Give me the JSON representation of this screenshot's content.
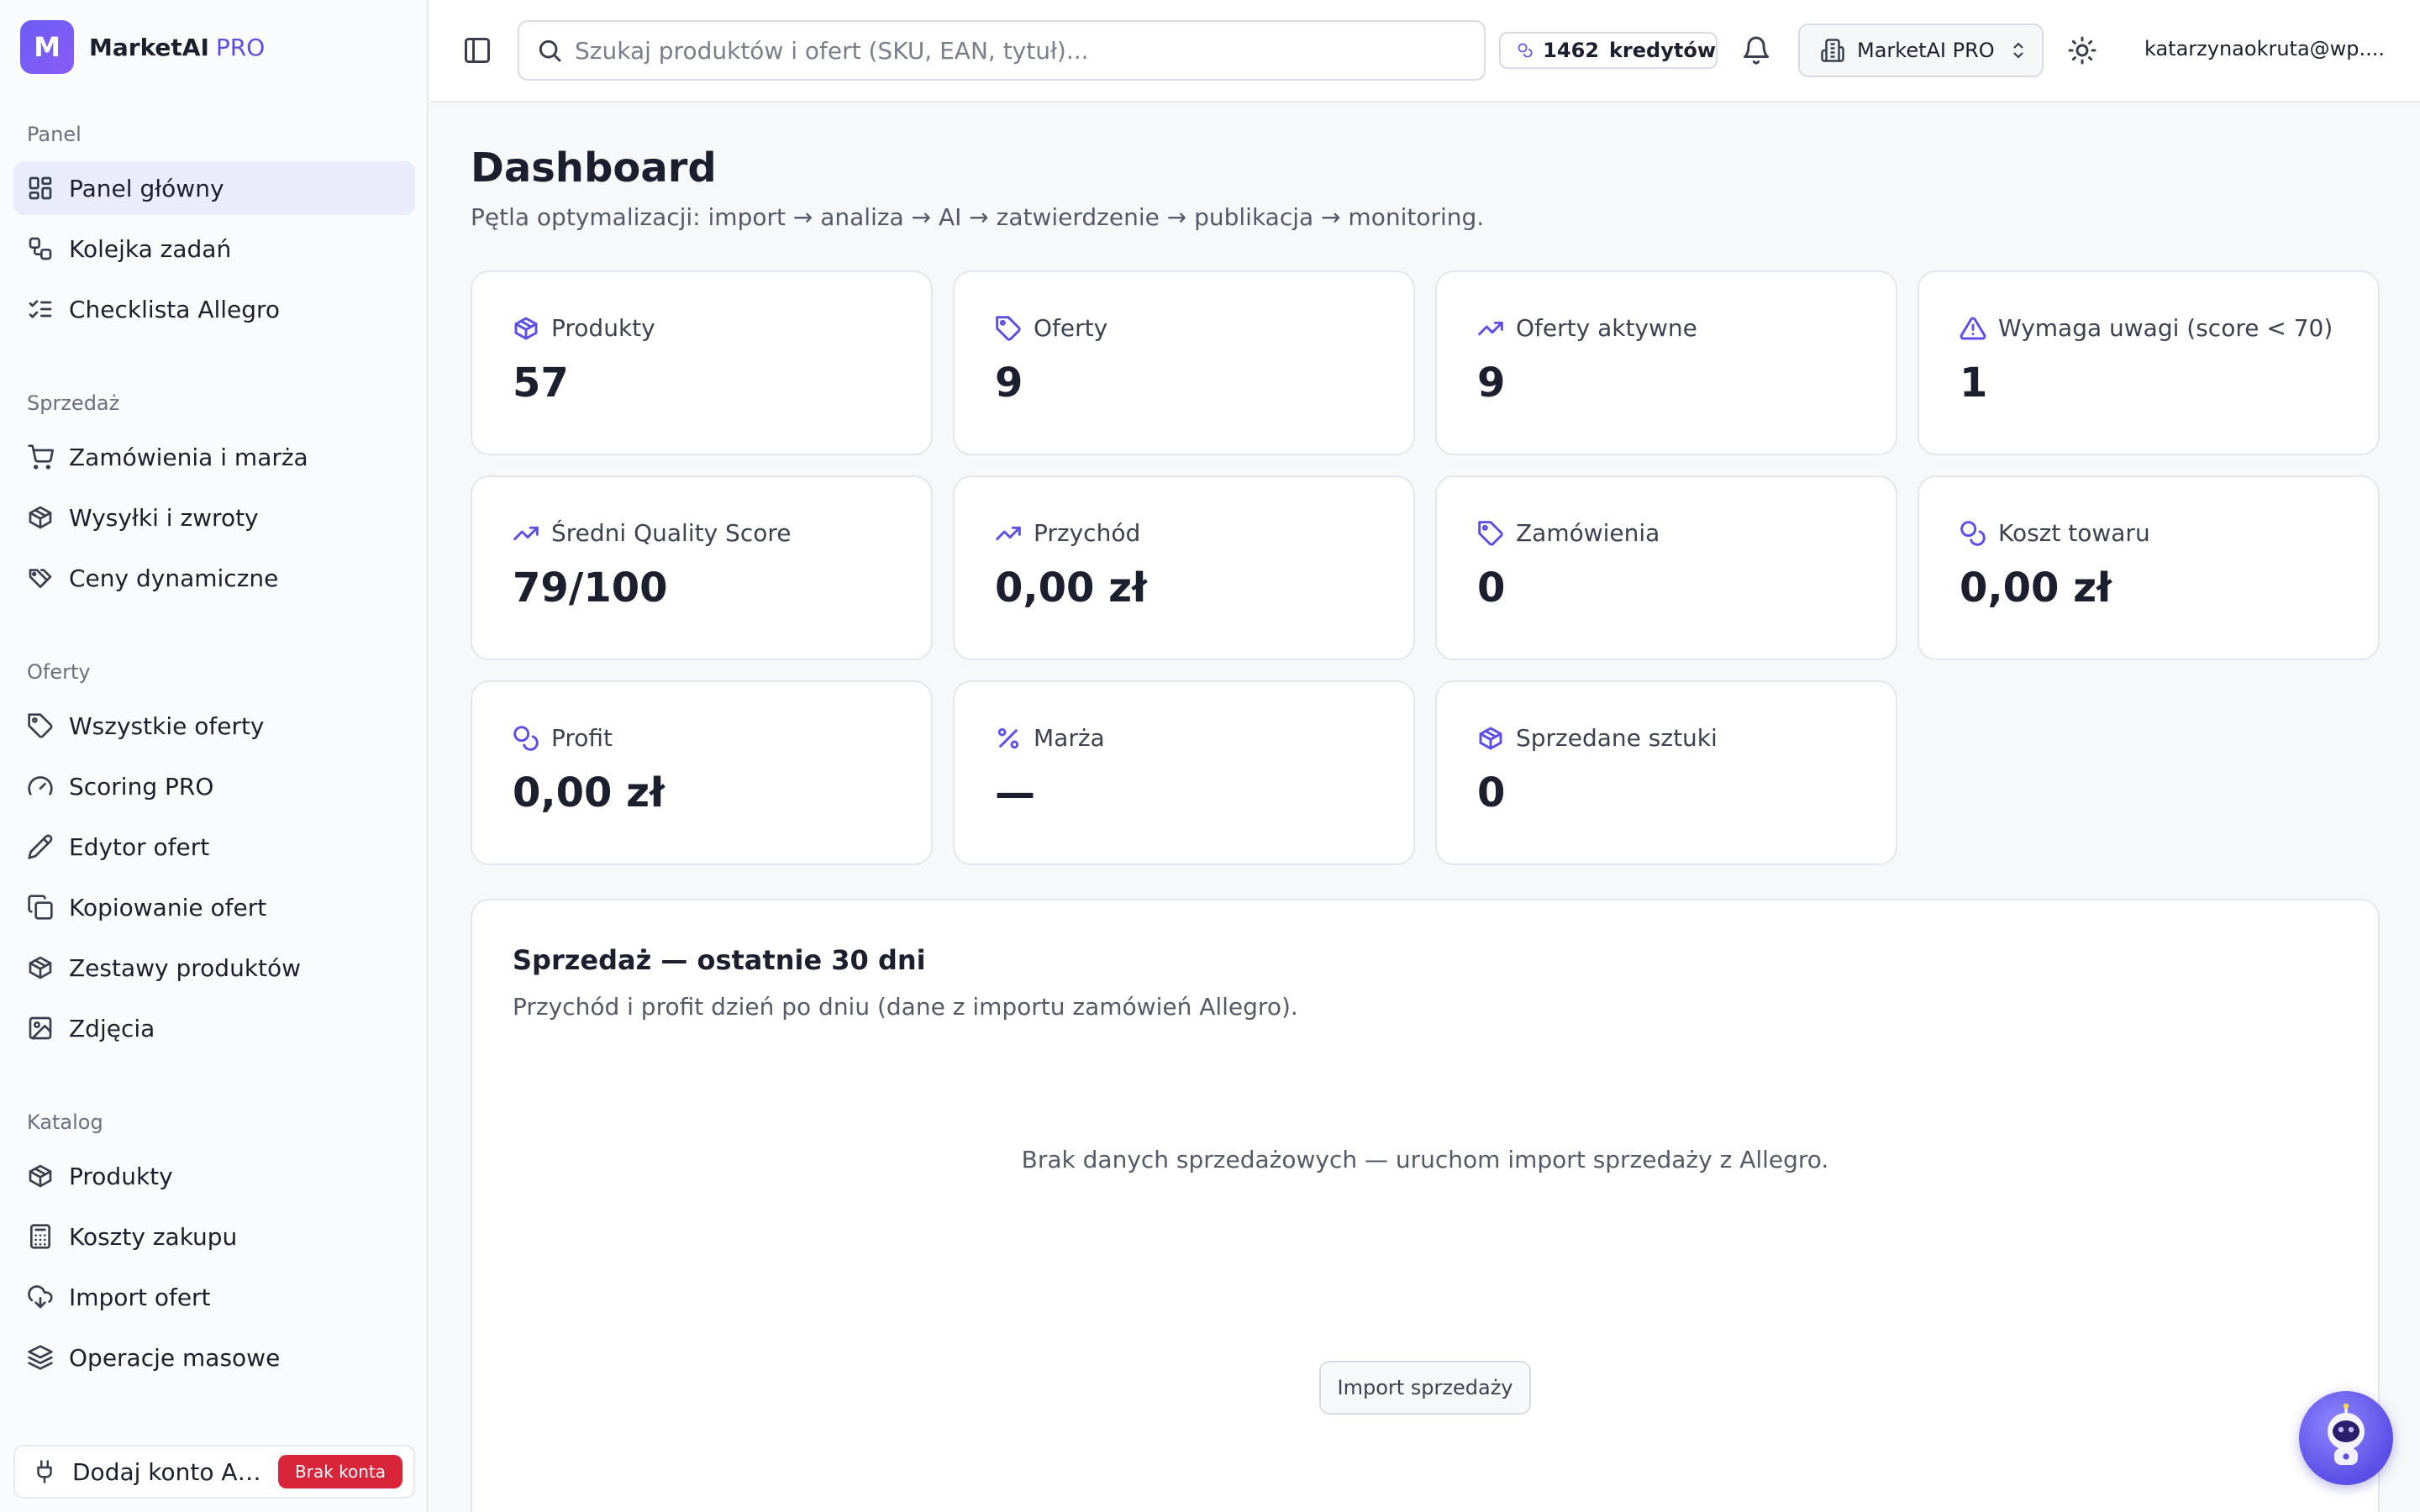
{
  "brand": {
    "logo_letter": "M",
    "name": "MarketAI",
    "tier": "PRO"
  },
  "sidebar": {
    "sections": [
      {
        "label": "Panel",
        "items": [
          "Panel główny",
          "Kolejka zadań",
          "Checklista Allegro"
        ]
      },
      {
        "label": "Sprzedaż",
        "items": [
          "Zamówienia i marża",
          "Wysyłki i zwroty",
          "Ceny dynamiczne"
        ]
      },
      {
        "label": "Oferty",
        "items": [
          "Wszystkie oferty",
          "Scoring PRO",
          "Edytor ofert",
          "Kopiowanie ofert",
          "Zestawy produktów",
          "Zdjęcia"
        ]
      },
      {
        "label": "Katalog",
        "items": [
          "Produkty",
          "Koszty zakupu",
          "Import ofert",
          "Operacje masowe"
        ]
      }
    ],
    "active_item": "Panel główny",
    "connect": {
      "label": "Dodaj konto Allegro",
      "badge": "Brak konta"
    }
  },
  "topbar": {
    "search_placeholder": "Szukaj produktów i ofert (SKU, EAN, tytuł)...",
    "credits_count": "1462",
    "credits_unit": "kredytów",
    "workspace": "MarketAI PRO",
    "user_email": "katarzynaokruta@wp...."
  },
  "page": {
    "title": "Dashboard",
    "subtitle": "Pętla optymalizacji: import → analiza → AI → zatwierdzenie → publikacja → monitoring."
  },
  "stats": [
    {
      "label": "Produkty",
      "value": "57",
      "icon": "package-icon"
    },
    {
      "label": "Oferty",
      "value": "9",
      "icon": "tag-icon"
    },
    {
      "label": "Oferty aktywne",
      "value": "9",
      "icon": "trending-up-icon"
    },
    {
      "label": "Wymaga uwagi (score < 70)",
      "value": "1",
      "icon": "alert-triangle-icon"
    },
    {
      "label": "Średni Quality Score",
      "value": "79/100",
      "icon": "trending-up-icon"
    },
    {
      "label": "Przychód",
      "value": "0,00 zł",
      "icon": "trending-up-icon"
    },
    {
      "label": "Zamówienia",
      "value": "0",
      "icon": "tag-icon"
    },
    {
      "label": "Koszt towaru",
      "value": "0,00 zł",
      "icon": "coins-icon"
    },
    {
      "label": "Profit",
      "value": "0,00 zł",
      "icon": "coins-icon"
    },
    {
      "label": "Marża",
      "value": "—",
      "icon": "percent-icon"
    },
    {
      "label": "Sprzedane sztuki",
      "value": "0",
      "icon": "package-icon"
    }
  ],
  "sales": {
    "title": "Sprzedaż — ostatnie 30 dni",
    "subtitle": "Przychód i profit dzień po dniu (dane z importu zamówień Allegro).",
    "empty_message": "Brak danych sprzedażowych — uruchom import sprzedaży z Allegro.",
    "button_label": "Import sprzedaży"
  },
  "colors": {
    "accent": "#5b4fe6",
    "badge_danger": "#d9253a",
    "active_nav_bg": "#e9ecfb"
  }
}
